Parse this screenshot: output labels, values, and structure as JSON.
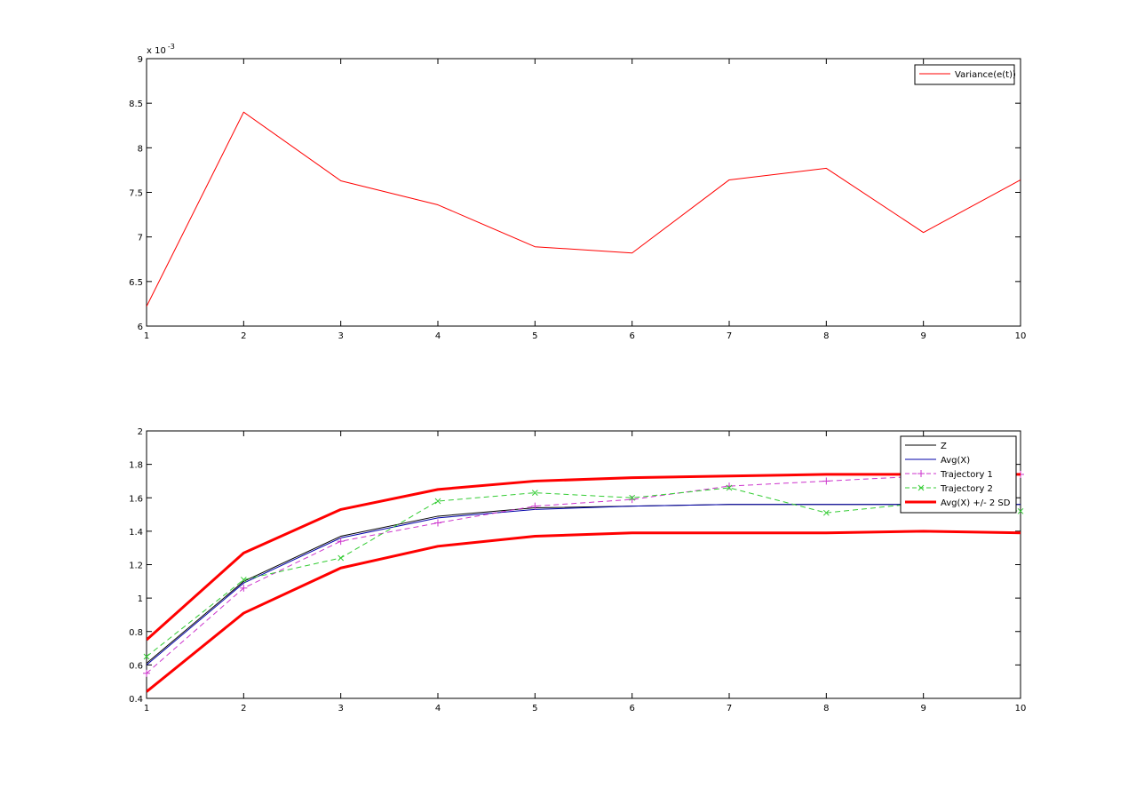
{
  "chart_data": [
    {
      "type": "line",
      "title": "",
      "xlabel": "",
      "ylabel": "",
      "x": [
        1,
        2,
        3,
        4,
        5,
        6,
        7,
        8,
        9,
        10
      ],
      "xlim": [
        1,
        10
      ],
      "ylim": [
        6,
        9
      ],
      "y_exponent_label": "x 10",
      "y_exponent_power": "-3",
      "x_ticks": [
        "1",
        "2",
        "3",
        "4",
        "5",
        "6",
        "7",
        "8",
        "9",
        "10"
      ],
      "y_ticks": [
        "6",
        "6.5",
        "7",
        "7.5",
        "8",
        "8.5",
        "9"
      ],
      "y_tick_values": [
        6,
        6.5,
        7,
        7.5,
        8,
        8.5,
        9
      ],
      "grid": false,
      "legend_position": "top-right",
      "series": [
        {
          "name": "Variance(e(t))",
          "color": "#ff0000",
          "style": "solid",
          "width": 1,
          "marker": "none",
          "values": [
            6.22,
            8.4,
            7.63,
            7.36,
            6.89,
            6.82,
            7.64,
            7.77,
            7.05,
            7.64
          ]
        }
      ]
    },
    {
      "type": "line",
      "title": "",
      "xlabel": "",
      "ylabel": "",
      "x": [
        1,
        2,
        3,
        4,
        5,
        6,
        7,
        8,
        9,
        10
      ],
      "xlim": [
        1,
        10
      ],
      "ylim": [
        0.4,
        2
      ],
      "x_ticks": [
        "1",
        "2",
        "3",
        "4",
        "5",
        "6",
        "7",
        "8",
        "9",
        "10"
      ],
      "y_ticks": [
        "0.4",
        "0.6",
        "0.8",
        "1",
        "1.2",
        "1.4",
        "1.6",
        "1.8",
        "2"
      ],
      "y_tick_values": [
        0.4,
        0.6,
        0.8,
        1,
        1.2,
        1.4,
        1.6,
        1.8,
        2
      ],
      "grid": false,
      "legend_position": "top-right",
      "series": [
        {
          "name": "Z",
          "color": "#000000",
          "style": "solid",
          "width": 1,
          "marker": "none",
          "values": [
            0.61,
            1.1,
            1.37,
            1.49,
            1.54,
            1.55,
            1.56,
            1.56,
            1.56,
            1.56
          ]
        },
        {
          "name": "Avg(X)",
          "color": "#0000aa",
          "style": "solid",
          "width": 1,
          "marker": "none",
          "values": [
            0.6,
            1.09,
            1.36,
            1.48,
            1.53,
            1.55,
            1.56,
            1.56,
            1.56,
            1.56
          ]
        },
        {
          "name": "Trajectory 1",
          "color": "#cc33cc",
          "style": "dashed",
          "width": 1,
          "marker": "plus",
          "values": [
            0.55,
            1.06,
            1.34,
            1.45,
            1.55,
            1.59,
            1.67,
            1.7,
            1.73,
            1.74
          ]
        },
        {
          "name": "Trajectory 2",
          "color": "#33cc33",
          "style": "dashed",
          "width": 1,
          "marker": "x",
          "values": [
            0.65,
            1.11,
            1.24,
            1.58,
            1.63,
            1.6,
            1.66,
            1.51,
            1.57,
            1.52
          ]
        },
        {
          "name": "Avg(X) +/- 2 SD",
          "color": "#ff0000",
          "style": "solid",
          "width": 3,
          "marker": "none",
          "values": [
            0.75,
            1.27,
            1.53,
            1.65,
            1.7,
            1.72,
            1.73,
            1.74,
            1.74,
            1.74
          ]
        },
        {
          "name": "",
          "color": "#ff0000",
          "style": "solid",
          "width": 3,
          "marker": "none",
          "in_legend": false,
          "values": [
            0.44,
            0.91,
            1.18,
            1.31,
            1.37,
            1.39,
            1.39,
            1.39,
            1.4,
            1.39
          ]
        }
      ]
    }
  ]
}
